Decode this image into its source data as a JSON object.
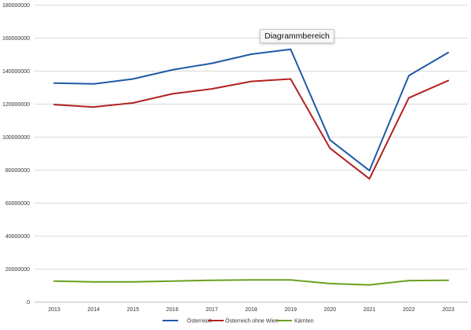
{
  "tooltip": "Diagrammbereich",
  "chart_data": {
    "type": "line",
    "x": [
      "2013",
      "2014",
      "2015",
      "2016",
      "2017",
      "2018",
      "2019",
      "2020",
      "2021",
      "2022",
      "2023"
    ],
    "series": [
      {
        "name": "Österreich",
        "color": "#1f5aa6",
        "values": [
          132500000,
          132000000,
          135000000,
          140500000,
          144500000,
          150000000,
          153000000,
          98000000,
          79500000,
          137000000,
          151000000
        ]
      },
      {
        "name": "Österreich ohne Wien",
        "color": "#b22222",
        "values": [
          119500000,
          118000000,
          120500000,
          126000000,
          129000000,
          133500000,
          135000000,
          93000000,
          74500000,
          123500000,
          134000000
        ]
      },
      {
        "name": "Kärnten",
        "color": "#6aa121",
        "values": [
          12500000,
          12000000,
          12000000,
          12500000,
          13000000,
          13200000,
          13200000,
          11000000,
          10200000,
          12800000,
          13000000
        ]
      }
    ],
    "ylim": [
      0,
      180000000
    ],
    "yticks": [
      {
        "value": 0,
        "label": "0"
      },
      {
        "value": 20000000,
        "label": "20000000"
      },
      {
        "value": 40000000,
        "label": "40000000"
      },
      {
        "value": 60000000,
        "label": "60000000"
      },
      {
        "value": 80000000,
        "label": "80000000"
      },
      {
        "value": 100000000,
        "label": "100000000"
      },
      {
        "value": 120000000,
        "label": "120000000"
      },
      {
        "value": 140000000,
        "label": "140000000"
      },
      {
        "value": 160000000,
        "label": "160000000"
      },
      {
        "value": 180000000,
        "label": "180000000"
      }
    ],
    "grid": true,
    "legend": "bottom",
    "gridline_color": "#d9d9d9",
    "label_color": "#333333"
  }
}
